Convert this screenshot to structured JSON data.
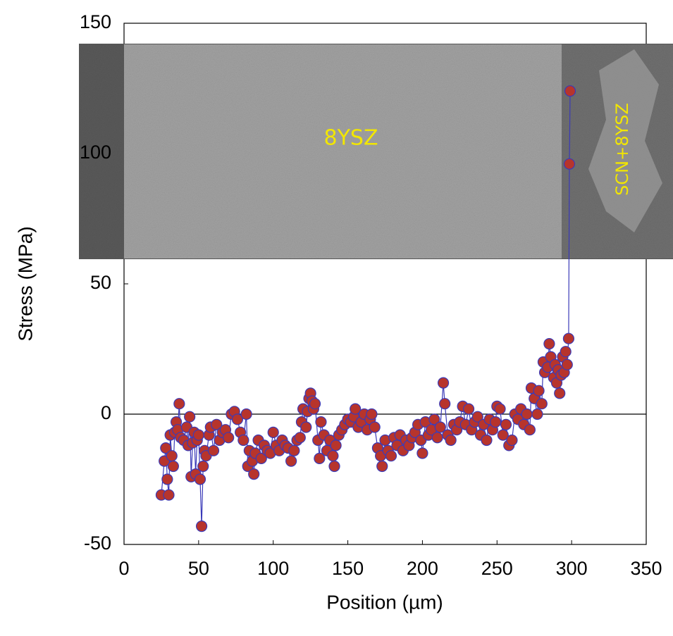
{
  "chart_data": {
    "type": "scatter",
    "x_label": "Position (µm)",
    "y_label": "Stress (MPa)",
    "xlim": [
      0,
      350
    ],
    "xticks": [
      0,
      50,
      100,
      150,
      200,
      250,
      300,
      350
    ],
    "ylim": [
      -50,
      150
    ],
    "yticks": [
      -50,
      0,
      50,
      100,
      150
    ],
    "reference_line": 0,
    "annotations": [
      "8YSZ",
      "SCN+8YSZ"
    ],
    "series": [
      {
        "color": "#b7342c",
        "edge_color": "#3a3ab8",
        "x": [
          25,
          27,
          28,
          29,
          30,
          31,
          32,
          33,
          34,
          35,
          36,
          37,
          38,
          40,
          42,
          43,
          44,
          45,
          46,
          47,
          48,
          49,
          50,
          51,
          52,
          53,
          54,
          55,
          57,
          58,
          60,
          62,
          64,
          66,
          68,
          70,
          72,
          74,
          76,
          78,
          80,
          82,
          83,
          84,
          86,
          87,
          88,
          90,
          92,
          94,
          96,
          98,
          100,
          102,
          104,
          106,
          108,
          110,
          112,
          114,
          116,
          118,
          119,
          120,
          122,
          123,
          124,
          125,
          126,
          127,
          128,
          130,
          131,
          132,
          134,
          136,
          138,
          140,
          141,
          142,
          144,
          146,
          148,
          150,
          152,
          154,
          155,
          157,
          159,
          161,
          163,
          165,
          166,
          168,
          170,
          172,
          173,
          175,
          177,
          179,
          181,
          183,
          185,
          187,
          189,
          191,
          193,
          195,
          197,
          199,
          200,
          202,
          204,
          206,
          208,
          210,
          212,
          214,
          215,
          217,
          219,
          221,
          223,
          225,
          227,
          229,
          231,
          233,
          235,
          237,
          239,
          241,
          243,
          245,
          247,
          249,
          250,
          252,
          254,
          256,
          258,
          260,
          262,
          264,
          266,
          268,
          270,
          272,
          273,
          275,
          277,
          278,
          280,
          281,
          282,
          284,
          285,
          286,
          288,
          289,
          290,
          291,
          292,
          293,
          294,
          295,
          296,
          297,
          298,
          298.5,
          299
        ],
        "values": [
          -31,
          -18,
          -13,
          -25,
          -31,
          -8,
          -16,
          -20,
          -7,
          -3,
          -6,
          4,
          -9,
          -10,
          -5,
          -12,
          -1,
          -24,
          -11,
          -7,
          -23,
          -10,
          -8,
          -25,
          -43,
          -20,
          -14,
          -16,
          -8,
          -5,
          -14,
          -4,
          -10,
          -7,
          -6,
          -9,
          0,
          1,
          -2,
          -7,
          -10,
          0,
          -20,
          -14,
          -18,
          -23,
          -15,
          -10,
          -17,
          -12,
          -14,
          -15,
          -7,
          -12,
          -14,
          -10,
          -12,
          -13,
          -18,
          -14,
          -10,
          -9,
          -3,
          2,
          -5,
          1,
          6,
          8,
          5,
          2,
          4,
          -10,
          -17,
          -3,
          -8,
          -14,
          -10,
          -16,
          -20,
          -12,
          -8,
          -6,
          -4,
          -2,
          -3,
          -1,
          2,
          -5,
          -3,
          0,
          -6,
          -2,
          0,
          -5,
          -13,
          -16,
          -20,
          -10,
          -14,
          -16,
          -9,
          -12,
          -8,
          -14,
          -10,
          -12,
          -9,
          -7,
          -4,
          -10,
          -15,
          -3,
          -8,
          -6,
          -2,
          -9,
          -5,
          12,
          4,
          -8,
          -10,
          -4,
          -6,
          -3,
          3,
          -4,
          2,
          -6,
          -3,
          -1,
          -8,
          -4,
          -10,
          -2,
          -6,
          -3,
          3,
          2,
          -8,
          -4,
          -12,
          -10,
          0,
          -2,
          2,
          -4,
          0,
          -6,
          10,
          6,
          0,
          9,
          4,
          20,
          16,
          18,
          27,
          22,
          14,
          19,
          12,
          17,
          8,
          15,
          22,
          16,
          24,
          19,
          29,
          96,
          124
        ]
      }
    ]
  }
}
